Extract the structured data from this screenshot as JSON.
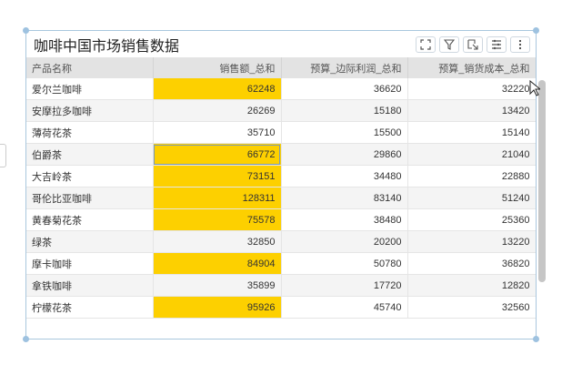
{
  "widget": {
    "title": "咖啡中国市场销售数据",
    "toolbar": [
      {
        "icon": "fullscreen-icon"
      },
      {
        "icon": "filter-icon"
      },
      {
        "icon": "export-icon"
      },
      {
        "icon": "list-settings-icon"
      },
      {
        "icon": "more-icon"
      }
    ]
  },
  "table": {
    "columns": [
      "产品名称",
      "销售额_总和",
      "预算_边际利润_总和",
      "预算_销货成本_总和"
    ],
    "rows": [
      [
        "爱尔兰咖啡",
        "62248",
        "36620",
        "32220"
      ],
      [
        "安摩拉多咖啡",
        "26269",
        "15180",
        "13420"
      ],
      [
        "薄荷花茶",
        "35710",
        "15500",
        "15140"
      ],
      [
        "伯爵茶",
        "66772",
        "29860",
        "21040"
      ],
      [
        "大吉岭茶",
        "73151",
        "34480",
        "22880"
      ],
      [
        "哥伦比亚咖啡",
        "128311",
        "83140",
        "51240"
      ],
      [
        "黄春菊花茶",
        "75578",
        "38480",
        "25360"
      ],
      [
        "绿茶",
        "32850",
        "20200",
        "13220"
      ],
      [
        "摩卡咖啡",
        "84904",
        "50780",
        "36820"
      ],
      [
        "拿铁咖啡",
        "35899",
        "17720",
        "12820"
      ],
      [
        "柠檬花茶",
        "95926",
        "45740",
        "32560"
      ]
    ],
    "highlighted_rows": [
      0,
      3,
      4,
      5,
      6,
      8,
      10
    ],
    "highlight_color": "#fdd000",
    "selected_cell": {
      "row": 3,
      "col": 1
    }
  }
}
